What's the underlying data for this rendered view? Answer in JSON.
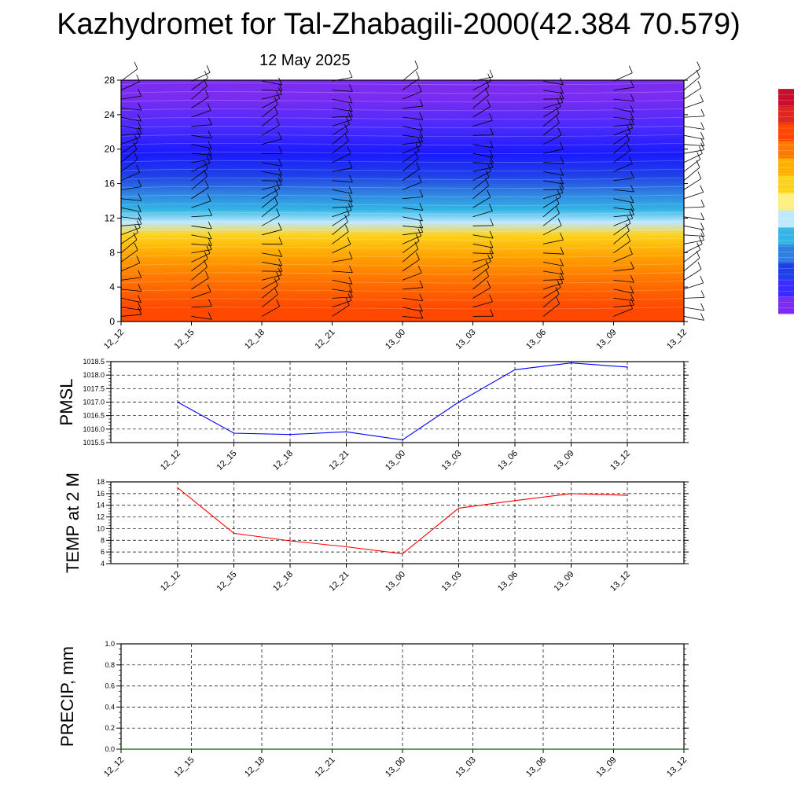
{
  "header": {
    "title": "Kazhydromet for Tal-Zhabagili-2000(42.384 70.579)",
    "date": "12 May 2025"
  },
  "colors": {
    "pmsl_line": "#0000ff",
    "temp_line": "#ff0000",
    "precip_line": "#006400",
    "colorbar": [
      "#7a2cf0",
      "#3a2bff",
      "#1f3fe8",
      "#2f7fe0",
      "#33b5e5",
      "#bfe9ff",
      "#ffef80",
      "#ffd21a",
      "#ffb000",
      "#ff7a00",
      "#ff4500",
      "#e0261e",
      "#c8102e"
    ]
  },
  "chart_data": [
    {
      "type": "heatmap",
      "title": "",
      "x_ticks": [
        "12_12",
        "12_15",
        "12_18",
        "12_21",
        "13_00",
        "13_03",
        "13_06",
        "13_09",
        "13_12"
      ],
      "y_ticks": [
        "0",
        "4",
        "8",
        "12",
        "16",
        "20",
        "24",
        "28"
      ],
      "ylim": [
        0,
        28
      ],
      "color_bands": [
        {
          "y0": 0,
          "y1": 3,
          "color": "#ff4800"
        },
        {
          "y0": 3,
          "y1": 6,
          "color": "#ff6f00"
        },
        {
          "y0": 6,
          "y1": 9,
          "color": "#ffa100"
        },
        {
          "y0": 9,
          "y1": 11,
          "color": "#ffd21a"
        },
        {
          "y0": 11,
          "y1": 12,
          "color": "#bfe9ff"
        },
        {
          "y0": 12,
          "y1": 14,
          "color": "#33b5e5"
        },
        {
          "y0": 14,
          "y1": 16,
          "color": "#2f7fe0"
        },
        {
          "y0": 16,
          "y1": 18,
          "color": "#1f3fe8"
        },
        {
          "y0": 18,
          "y1": 21,
          "color": "#1a1aff"
        },
        {
          "y0": 21,
          "y1": 24,
          "color": "#4a2bff"
        },
        {
          "y0": 24,
          "y1": 28,
          "color": "#7a2cf0"
        }
      ],
      "barb_columns": [
        "12_12",
        "12_15",
        "12_18",
        "12_21",
        "13_00",
        "13_03",
        "13_06",
        "13_09",
        "13_12"
      ],
      "grid": false
    },
    {
      "type": "line",
      "ylabel": "PMSL",
      "x": [
        "12_12",
        "12_15",
        "12_18",
        "12_21",
        "13_00",
        "13_03",
        "13_06",
        "13_09",
        "13_12"
      ],
      "y": [
        1017.0,
        1015.85,
        1015.8,
        1015.9,
        1015.6,
        1017.0,
        1018.2,
        1018.45,
        1018.3
      ],
      "ylim": [
        1015.5,
        1018.5
      ],
      "y_ticks": [
        "1015.5",
        "1016.0",
        "1016.5",
        "1017.0",
        "1017.5",
        "1018.0",
        "1018.5"
      ],
      "grid": true
    },
    {
      "type": "line",
      "ylabel": "TEMP at 2 M",
      "x": [
        "12_12",
        "12_15",
        "12_18",
        "12_21",
        "13_00",
        "13_03",
        "13_06",
        "13_09",
        "13_12"
      ],
      "y": [
        17.0,
        9.2,
        7.9,
        6.9,
        5.7,
        13.5,
        14.8,
        16.0,
        15.7
      ],
      "ylim": [
        4,
        18
      ],
      "y_ticks": [
        "4",
        "6",
        "8",
        "10",
        "12",
        "14",
        "16",
        "18"
      ],
      "grid": true
    },
    {
      "type": "line",
      "ylabel": "PRECIP, mm",
      "x": [
        "12_12",
        "12_15",
        "12_18",
        "12_21",
        "13_00",
        "13_03",
        "13_06",
        "13_09",
        "13_12"
      ],
      "y": [
        0,
        0,
        0,
        0,
        0,
        0,
        0,
        0,
        0
      ],
      "ylim": [
        0,
        1
      ],
      "y_ticks": [
        "0.0",
        "0.2",
        "0.4",
        "0.6",
        "0.8",
        "1.0"
      ],
      "grid": true
    }
  ]
}
